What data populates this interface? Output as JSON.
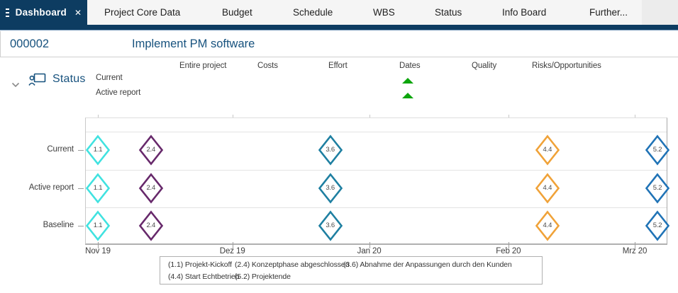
{
  "tabbar": {
    "active_tab": "Dashboard",
    "close_label": "✕",
    "tabs": [
      "Project Core Data",
      "Budget",
      "Schedule",
      "WBS",
      "Status",
      "Info Board",
      "Further..."
    ]
  },
  "header": {
    "project_id": "000002",
    "project_title": "Implement PM software"
  },
  "status_section": {
    "title": "Status",
    "row_labels": [
      "Current",
      "Active report"
    ],
    "columns": [
      "Entire project",
      "Costs",
      "Effort",
      "Dates",
      "Quality",
      "Risks/Opportunities"
    ],
    "indicators": [
      {
        "row": "Current",
        "column": "Dates",
        "symbol": "triangle-up",
        "color": "#0ca50c"
      },
      {
        "row": "Active report",
        "column": "Dates",
        "symbol": "triangle-up",
        "color": "#0ca50c"
      }
    ]
  },
  "chart_data": {
    "type": "milestone-timeline",
    "rows": [
      "Current",
      "Active report",
      "Baseline"
    ],
    "x_ticks": [
      {
        "label": "Nov 19",
        "x_percent": 2.2
      },
      {
        "label": "Dez 19",
        "x_percent": 25.3
      },
      {
        "label": "Jan 20",
        "x_percent": 48.8
      },
      {
        "label": "Feb 20",
        "x_percent": 72.7
      },
      {
        "label": "Mrz 20",
        "x_percent": 94.4
      }
    ],
    "milestones": [
      {
        "id": "1.1",
        "name": "Projekt-Kickoff",
        "color": "#40e2e0",
        "x_percent": 2.2
      },
      {
        "id": "2.4",
        "name": "Konzeptphase abgeschlossen",
        "color": "#67296b",
        "x_percent": 11.3
      },
      {
        "id": "3.6",
        "name": "Abnahme der Anpassungen durch den Kunden",
        "color": "#1e7fa1",
        "x_percent": 42.1
      },
      {
        "id": "4.4",
        "name": "Start Echtbetrieb",
        "color": "#f0a238",
        "x_percent": 79.4
      },
      {
        "id": "5.2",
        "name": "Projektende",
        "color": "#2073b6",
        "x_percent": 98.3
      }
    ],
    "legend_rows": [
      [
        "(1.1) Projekt-Kickoff",
        "(2.4) Konzeptphase abgeschlossen",
        "(3.6) Abnahme der Anpassungen durch den Kunden"
      ],
      [
        "(4.4) Start Echtbetrieb",
        "(5.2) Projektende"
      ]
    ]
  },
  "colors": {
    "navy": "#0d3c61",
    "heading_blue": "#17527e",
    "green_indicator": "#0ca50c"
  }
}
